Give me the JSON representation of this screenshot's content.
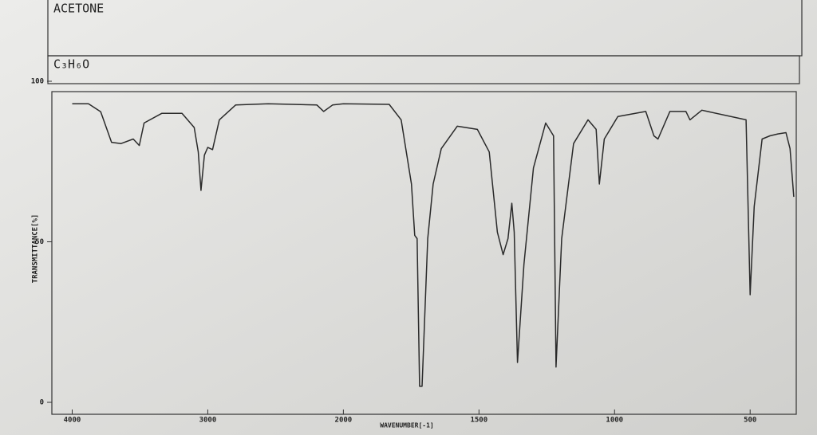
{
  "title": "ACETONE",
  "formula": "C₃H₆O",
  "chart_data": {
    "type": "line",
    "x_label": "WAVENUMBER[-1]",
    "y_label": "TRANSMITTANCE[%]",
    "xlim": [
      4150,
      330
    ],
    "x_scale_break": 2000,
    "xticks": [
      4000,
      3000,
      2000,
      1500,
      1000,
      500
    ],
    "ylim": [
      0,
      100
    ],
    "yticks": [
      0,
      50,
      100
    ],
    "color": "#2a2a2a",
    "series": [
      {
        "x": [
          4000,
          3880,
          3790,
          3710,
          3640,
          3550,
          3505,
          3470,
          3340,
          3190,
          3100,
          3070,
          3050,
          3025,
          3000,
          2965,
          2915,
          2795,
          2555,
          2195,
          2145,
          2080,
          2000,
          1831,
          1787,
          1749,
          1737,
          1728,
          1719,
          1710,
          1689,
          1669,
          1639,
          1580,
          1506,
          1462,
          1432,
          1411,
          1393,
          1379,
          1370,
          1358,
          1334,
          1299,
          1254,
          1225,
          1216,
          1195,
          1151,
          1098,
          1068,
          1056,
          1038,
          988,
          885,
          855,
          840,
          796,
          737,
          722,
          678,
          515,
          500,
          485,
          456,
          427,
          398,
          368,
          353,
          339
        ],
        "values": [
          93,
          93,
          90.5,
          81,
          80.6,
          82,
          80,
          87,
          90,
          90,
          85.6,
          78,
          66,
          77,
          79.4,
          78.7,
          88,
          92.6,
          93,
          92.6,
          90.6,
          92.6,
          93,
          92.8,
          88,
          68,
          52,
          51,
          5,
          5,
          51,
          68,
          79,
          86,
          85,
          78,
          53,
          46,
          51,
          62,
          53,
          12.4,
          43,
          73,
          87,
          83,
          11,
          51,
          80.6,
          88,
          85,
          68,
          82,
          89,
          90.6,
          83,
          82,
          90.6,
          90.6,
          88,
          91,
          88,
          33.5,
          61,
          82,
          83,
          83.6,
          84,
          79,
          64
        ]
      }
    ]
  }
}
